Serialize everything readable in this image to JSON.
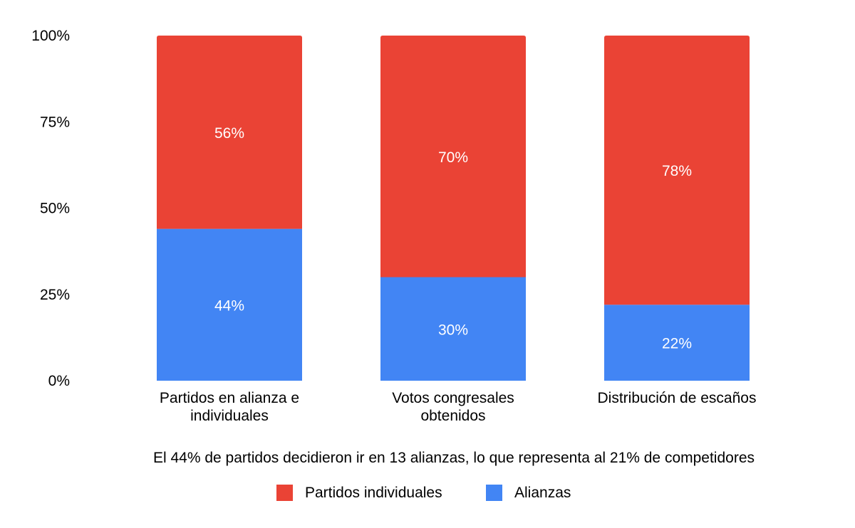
{
  "chart_data": {
    "type": "bar",
    "stacked": true,
    "normalized": true,
    "categories": [
      [
        "Partidos en alianza e",
        "individuales"
      ],
      [
        "Votos congresales",
        "obtenidos"
      ],
      [
        "Distribución de escaños"
      ]
    ],
    "series": [
      {
        "name": "Alianzas",
        "color": "#4285f4",
        "values": [
          44,
          30,
          22
        ],
        "labels": [
          "44%",
          "30%",
          "22%"
        ]
      },
      {
        "name": "Partidos individuales",
        "color": "#ea4335",
        "values": [
          56,
          70,
          78
        ],
        "labels": [
          "56%",
          "70%",
          "78%"
        ]
      }
    ],
    "yticks": [
      "0%",
      "25%",
      "50%",
      "75%",
      "100%"
    ],
    "ylim": [
      0,
      100
    ],
    "grid": false,
    "legend_position": "bottom",
    "caption": "El 44% de partidos decidieron ir en 13 alianzas, lo que representa al 21% de competidores",
    "legend": [
      {
        "name": "Partidos individuales",
        "color": "#ea4335"
      },
      {
        "name": "Alianzas",
        "color": "#4285f4"
      }
    ]
  }
}
